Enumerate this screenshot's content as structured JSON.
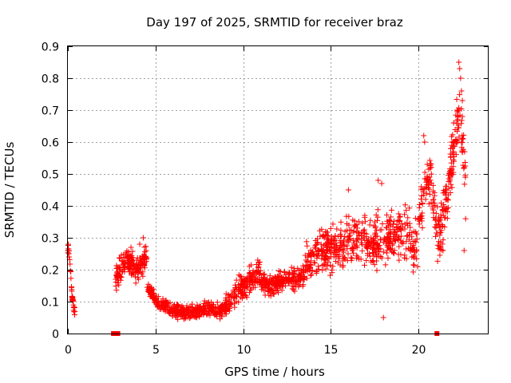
{
  "chart_data": {
    "type": "scatter",
    "title": "Day 197 of 2025, SRMTID for receiver braz",
    "xlabel": "GPS time / hours",
    "ylabel": "SRMTID / TECUs",
    "xlim": [
      0,
      24
    ],
    "ylim": [
      0,
      0.9
    ],
    "xticks": [
      0,
      5,
      10,
      15,
      20
    ],
    "xtick_labels": [
      "0",
      "5",
      "10",
      "15",
      "20"
    ],
    "yticks": [
      0,
      0.1,
      0.2,
      0.3,
      0.4,
      0.5,
      0.6,
      0.7,
      0.8,
      0.9
    ],
    "ytick_labels": [
      "0",
      "0.1",
      "0.2",
      "0.3",
      "0.4",
      "0.5",
      "0.6",
      "0.7",
      "0.8",
      "0.9"
    ],
    "grid": true,
    "marker": "plus",
    "color": "#ff0000",
    "series": [
      {
        "name": "SRMTID",
        "segments": [
          {
            "x_start": 0.0,
            "x_end": 0.4,
            "points": 40,
            "center": [
              0.28,
              0.25,
              0.18,
              0.12,
              0.09,
              0.07
            ],
            "spread": 0.02
          },
          {
            "x_start": 2.7,
            "x_end": 4.5,
            "points": 190,
            "center": [
              0.17,
              0.2,
              0.23,
              0.22,
              0.2,
              0.22,
              0.24
            ],
            "spread": 0.035
          },
          {
            "x_start": 4.5,
            "x_end": 9.0,
            "points": 420,
            "center": [
              0.15,
              0.1,
              0.08,
              0.07,
              0.065,
              0.07,
              0.075,
              0.07,
              0.08
            ],
            "spread": 0.02
          },
          {
            "x_start": 9.0,
            "x_end": 11.0,
            "points": 180,
            "center": [
              0.09,
              0.12,
              0.15,
              0.17,
              0.19
            ],
            "spread": 0.035
          },
          {
            "x_start": 11.0,
            "x_end": 13.5,
            "points": 230,
            "center": [
              0.16,
              0.15,
              0.16,
              0.17,
              0.18
            ],
            "spread": 0.03
          },
          {
            "x_start": 13.5,
            "x_end": 17.5,
            "points": 330,
            "center": [
              0.2,
              0.25,
              0.27,
              0.29,
              0.3,
              0.27
            ],
            "spread": 0.06
          },
          {
            "x_start": 17.5,
            "x_end": 20.0,
            "points": 200,
            "center": [
              0.28,
              0.3,
              0.33,
              0.3,
              0.27
            ],
            "spread": 0.07
          },
          {
            "x_start": 20.0,
            "x_end": 21.0,
            "points": 80,
            "center": [
              0.35,
              0.45,
              0.5,
              0.35
            ],
            "spread": 0.06
          },
          {
            "x_start": 21.0,
            "x_end": 22.7,
            "points": 160,
            "center": [
              0.32,
              0.36,
              0.45,
              0.58,
              0.7,
              0.46
            ],
            "spread": 0.08
          }
        ],
        "outliers": [
          {
            "x": 20.3,
            "y": 0.62
          },
          {
            "x": 20.35,
            "y": 0.6
          },
          {
            "x": 20.5,
            "y": 0.53
          },
          {
            "x": 22.3,
            "y": 0.85
          },
          {
            "x": 22.35,
            "y": 0.83
          },
          {
            "x": 22.4,
            "y": 0.8
          },
          {
            "x": 22.45,
            "y": 0.76
          },
          {
            "x": 22.5,
            "y": 0.73
          },
          {
            "x": 22.2,
            "y": 0.7
          },
          {
            "x": 22.5,
            "y": 0.68
          },
          {
            "x": 22.0,
            "y": 0.66
          },
          {
            "x": 21.9,
            "y": 0.6
          },
          {
            "x": 22.0,
            "y": 0.57
          },
          {
            "x": 22.6,
            "y": 0.52
          },
          {
            "x": 18.0,
            "y": 0.05
          },
          {
            "x": 4.3,
            "y": 0.3
          },
          {
            "x": 4.1,
            "y": 0.28
          },
          {
            "x": 3.6,
            "y": 0.27
          },
          {
            "x": 17.7,
            "y": 0.48
          },
          {
            "x": 17.9,
            "y": 0.47
          },
          {
            "x": 16.0,
            "y": 0.45
          },
          {
            "x": 21.4,
            "y": 0.26
          },
          {
            "x": 21.6,
            "y": 0.42
          },
          {
            "x": 22.6,
            "y": 0.26
          }
        ]
      },
      {
        "name": "zero-level markers",
        "marker": "square",
        "points": [
          {
            "x": 2.6,
            "y": 0.0
          },
          {
            "x": 2.85,
            "y": 0.0
          },
          {
            "x": 21.05,
            "y": 0.0
          }
        ]
      }
    ]
  }
}
